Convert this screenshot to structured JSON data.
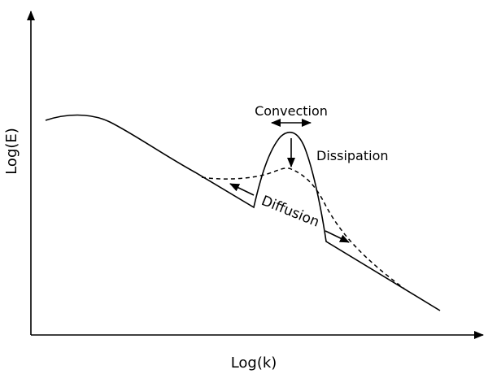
{
  "diagram": {
    "x_axis_label": "Log(k)",
    "y_axis_label": "Log(E)",
    "annotations": {
      "convection": "Convection",
      "dissipation": "Dissipation",
      "diffusion": "Diffusion"
    }
  }
}
